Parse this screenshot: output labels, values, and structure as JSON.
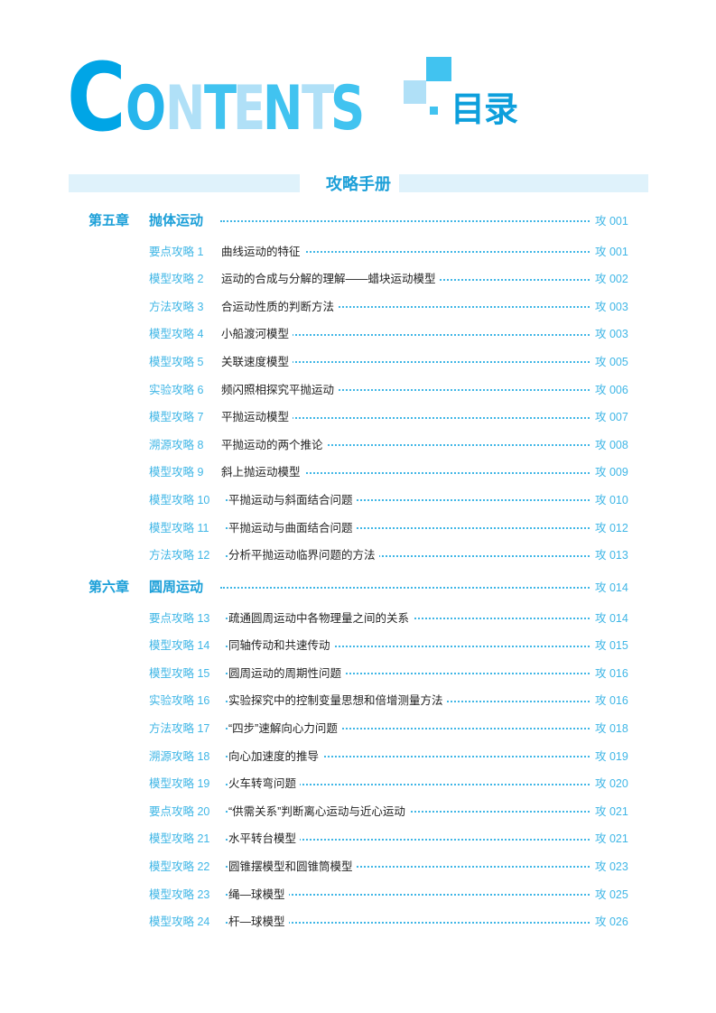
{
  "header": {
    "logo_letters": [
      "C",
      "O",
      "N",
      "T",
      "E",
      "N",
      "T",
      "S"
    ],
    "logo_colors": [
      "#00a5e6",
      "#26b5ec",
      "#b0e0f7",
      "#41c3f0",
      "#b0e0f7",
      "#41c3f0",
      "#b0e0f7",
      "#41c3f0"
    ],
    "subtitle": "目录"
  },
  "section_title": "攻略手册",
  "accent_color": "#1b9fd8",
  "chapters": [
    {
      "label": "第五章",
      "title": "抛体运动",
      "page": "攻 001",
      "items": [
        {
          "label": "要点攻略 1",
          "title": "曲线运动的特征",
          "page": "攻 001"
        },
        {
          "label": "模型攻略 2",
          "title": "运动的合成与分解的理解——蜡块运动模型",
          "page": "攻 002"
        },
        {
          "label": "方法攻略 3",
          "title": "合运动性质的判断方法",
          "page": "攻 003"
        },
        {
          "label": "模型攻略 4",
          "title": "小船渡河模型",
          "page": "攻 003"
        },
        {
          "label": "模型攻略 5",
          "title": "关联速度模型",
          "page": "攻 005"
        },
        {
          "label": "实验攻略 6",
          "title": "频闪照相探究平抛运动",
          "page": "攻 006"
        },
        {
          "label": "模型攻略 7",
          "title": "平抛运动模型",
          "page": "攻 007"
        },
        {
          "label": "溯源攻略 8",
          "title": "平抛运动的两个推论",
          "page": "攻 008"
        },
        {
          "label": "模型攻略 9",
          "title": "斜上抛运动模型",
          "page": "攻 009"
        },
        {
          "label": "模型攻略 10",
          "title": "平抛运动与斜面结合问题",
          "page": "攻 010"
        },
        {
          "label": "模型攻略 11",
          "title": "平抛运动与曲面结合问题",
          "page": "攻 012"
        },
        {
          "label": "方法攻略 12",
          "title": "分析平抛运动临界问题的方法",
          "page": "攻 013"
        }
      ]
    },
    {
      "label": "第六章",
      "title": "圆周运动",
      "page": "攻 014",
      "items": [
        {
          "label": "要点攻略 13",
          "title": "疏通圆周运动中各物理量之间的关系",
          "page": "攻 014"
        },
        {
          "label": "模型攻略 14",
          "title": "同轴传动和共速传动",
          "page": "攻 015"
        },
        {
          "label": "模型攻略 15",
          "title": "圆周运动的周期性问题",
          "page": "攻 016"
        },
        {
          "label": "实验攻略 16",
          "title": "实验探究中的控制变量思想和倍增测量方法",
          "page": "攻 016"
        },
        {
          "label": "方法攻略 17",
          "title": "“四步”速解向心力问题",
          "page": "攻 018"
        },
        {
          "label": "溯源攻略 18",
          "title": "向心加速度的推导",
          "page": "攻 019"
        },
        {
          "label": "模型攻略 19",
          "title": "火车转弯问题",
          "page": "攻 020"
        },
        {
          "label": "要点攻略 20",
          "title": "“供需关系”判断离心运动与近心运动",
          "page": "攻 021"
        },
        {
          "label": "模型攻略 21",
          "title": "水平转台模型",
          "page": "攻 021"
        },
        {
          "label": "模型攻略 22",
          "title": "圆锥摆模型和圆锥筒模型",
          "page": "攻 023"
        },
        {
          "label": "模型攻略 23",
          "title": "绳—球模型",
          "page": "攻 025"
        },
        {
          "label": "模型攻略 24",
          "title": "杆—球模型",
          "page": "攻 026"
        }
      ]
    }
  ]
}
